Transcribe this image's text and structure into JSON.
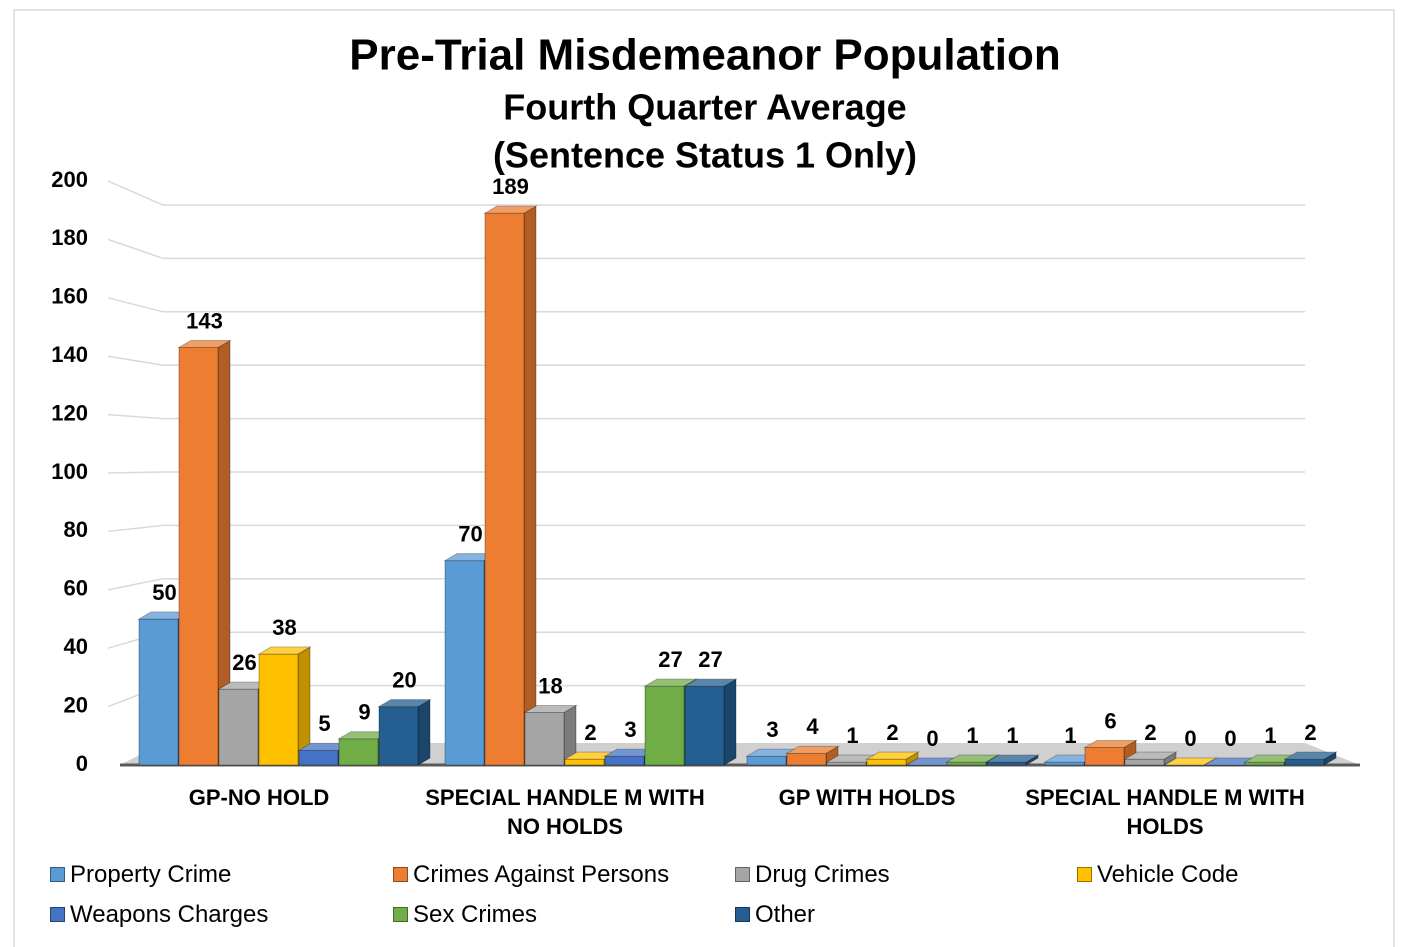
{
  "chart_data": {
    "type": "bar3d",
    "title": "Pre-Trial Misdemeanor Population",
    "subtitle": [
      "Fourth Quarter Average",
      "(Sentence Status 1 Only)"
    ],
    "categories": [
      "GP-NO HOLD",
      "SPECIAL HANDLE M WITH NO HOLDS",
      "GP WITH HOLDS",
      "SPECIAL HANDLE M WITH HOLDS"
    ],
    "series": [
      {
        "name": "Property Crime",
        "color": "#5b9bd5",
        "values": [
          50,
          70,
          3,
          1
        ]
      },
      {
        "name": "Crimes Against Persons",
        "color": "#ed7d31",
        "values": [
          143,
          189,
          4,
          6
        ]
      },
      {
        "name": "Drug Crimes",
        "color": "#a5a5a5",
        "values": [
          26,
          18,
          1,
          2
        ]
      },
      {
        "name": "Vehicle Code",
        "color": "#ffc000",
        "values": [
          38,
          2,
          2,
          0
        ]
      },
      {
        "name": "Weapons Charges",
        "color": "#4472c4",
        "values": [
          5,
          3,
          0,
          0
        ]
      },
      {
        "name": "Sex Crimes",
        "color": "#70ad47",
        "values": [
          9,
          27,
          1,
          1
        ]
      },
      {
        "name": "Other",
        "color": "#255e91",
        "values": [
          20,
          27,
          1,
          2
        ]
      }
    ],
    "ylim": [
      0,
      200
    ],
    "yticks": [
      0,
      20,
      40,
      60,
      80,
      100,
      120,
      140,
      160,
      180,
      200
    ],
    "grid": true,
    "legend": "bottom"
  }
}
